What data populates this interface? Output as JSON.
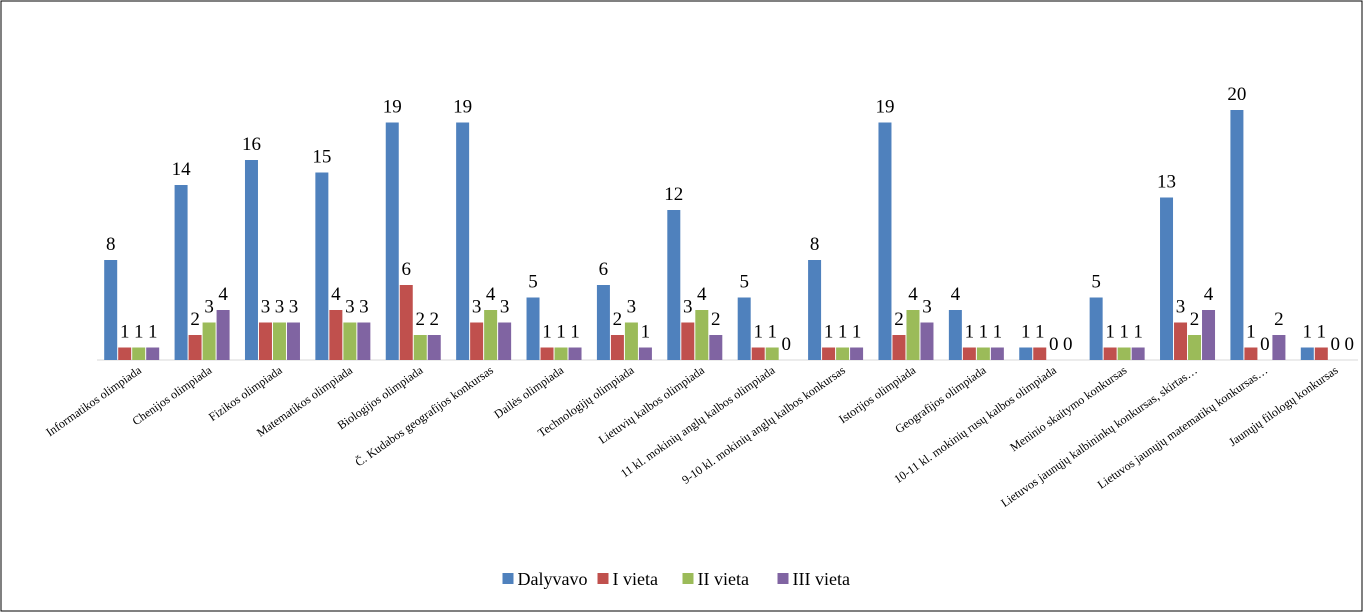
{
  "chart_data": {
    "type": "bar",
    "categories": [
      "Informatikos olimpiada",
      "Chenijos olimpiada",
      "Fizikos olimpiada",
      "Matematikos olimpiada",
      "Biologijos olimpiada",
      "Č. Kudabos geografijos konkursas",
      "Dailės olimpiada",
      "Technologijų olimpiada",
      "Lietuvių kalbos olimpiada",
      "11 kl. mokinių anglų kalbos olimpiada",
      "9-10 kl. mokinių anglų kalbos konkursas",
      "Istorijos olimpiada",
      "Geografijos olimpiada",
      "10-11 kl. mokinių rusų kalbos olimpiada",
      "Meninio skaitymo konkursas",
      "Lietuvos jaunųjų kalbininkų konkursas, skirtas…",
      "Lietuvos jaunųjų matematikų konkursas…",
      "Jaunųjų filologų konkursas"
    ],
    "series": [
      {
        "name": "Dalyvavo",
        "color": "#4f81bd",
        "values": [
          8,
          14,
          16,
          15,
          19,
          19,
          5,
          6,
          12,
          5,
          8,
          19,
          4,
          1,
          5,
          13,
          20,
          1
        ]
      },
      {
        "name": "I vieta",
        "color": "#c0504d",
        "values": [
          1,
          2,
          3,
          4,
          6,
          3,
          1,
          2,
          3,
          1,
          1,
          2,
          1,
          1,
          1,
          3,
          1,
          1
        ]
      },
      {
        "name": "II vieta",
        "color": "#9bbb59",
        "values": [
          1,
          3,
          3,
          3,
          2,
          4,
          1,
          3,
          4,
          1,
          1,
          4,
          1,
          0,
          1,
          2,
          0,
          0
        ]
      },
      {
        "name": "III vieta",
        "color": "#8064a2",
        "values": [
          1,
          4,
          3,
          3,
          2,
          3,
          1,
          1,
          2,
          0,
          1,
          3,
          1,
          0,
          1,
          4,
          2,
          0
        ]
      }
    ],
    "legend": "bottom"
  }
}
